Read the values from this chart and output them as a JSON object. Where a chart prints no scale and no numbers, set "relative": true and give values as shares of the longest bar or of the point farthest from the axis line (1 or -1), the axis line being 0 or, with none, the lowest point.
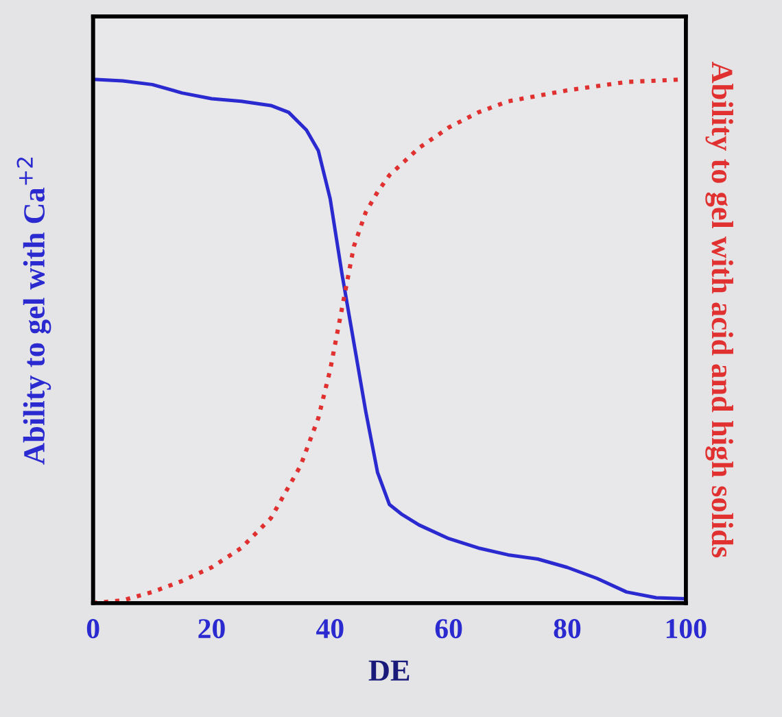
{
  "chart_data": {
    "type": "line",
    "relative": true,
    "xlabel": "DE",
    "ylabel": "Ability to gel with Ca$^{+2}$",
    "y2label": "Ability to gel with acid and high solids",
    "xlim": [
      0,
      100
    ],
    "xticks": [
      0,
      20,
      40,
      60,
      80,
      100
    ],
    "grid": false,
    "series": [
      {
        "color": "#2a2ad0",
        "line_style": "solid",
        "x": [
          0,
          5,
          10,
          15,
          20,
          25,
          30,
          33,
          36,
          38,
          40,
          42,
          44,
          46,
          48,
          50,
          52,
          55,
          60,
          65,
          70,
          75,
          80,
          85,
          90,
          95,
          100
        ],
        "values": [
          1.0,
          0.997,
          0.99,
          0.974,
          0.963,
          0.958,
          0.95,
          0.937,
          0.903,
          0.864,
          0.772,
          0.628,
          0.497,
          0.366,
          0.249,
          0.188,
          0.17,
          0.149,
          0.123,
          0.105,
          0.092,
          0.084,
          0.068,
          0.047,
          0.021,
          0.01,
          0.008
        ]
      },
      {
        "color": "#e03030",
        "line_style": "dotted",
        "axis": "y2",
        "x": [
          0,
          5,
          10,
          15,
          20,
          25,
          30,
          35,
          38,
          40,
          42,
          44,
          46,
          48,
          50,
          55,
          60,
          65,
          70,
          80,
          90,
          100
        ],
        "values": [
          0,
          0.005,
          0.021,
          0.042,
          0.068,
          0.105,
          0.162,
          0.262,
          0.353,
          0.445,
          0.563,
          0.681,
          0.746,
          0.785,
          0.817,
          0.869,
          0.908,
          0.937,
          0.958,
          0.979,
          0.995,
          1.0
        ]
      }
    ]
  }
}
